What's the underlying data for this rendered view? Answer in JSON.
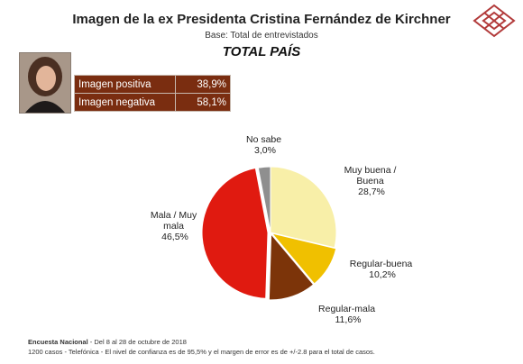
{
  "header": {
    "title": "Imagen de la ex Presidenta Cristina Fernández de Kirchner",
    "base": "Base: Total de entrevistados",
    "heading": "TOTAL PAÍS"
  },
  "summary": {
    "rows": [
      {
        "label": "Imagen positiva",
        "value": "38,9%"
      },
      {
        "label": "Imagen negativa",
        "value": "58,1%"
      }
    ]
  },
  "chart_data": {
    "type": "pie",
    "slices": [
      {
        "label": "Muy buena / Buena",
        "value": 28.7,
        "value_text": "28,7%",
        "color": "#f8efa8"
      },
      {
        "label": "Regular-buena",
        "value": 10.2,
        "value_text": "10,2%",
        "color": "#f0c000"
      },
      {
        "label": "Regular-mala",
        "value": 11.6,
        "value_text": "11,6%",
        "color": "#7c3409"
      },
      {
        "label": "Mala / Muy mala",
        "value": 46.5,
        "value_text": "46,5%",
        "color": "#e01a10"
      },
      {
        "label": "No sabe",
        "value": 3.0,
        "value_text": "3,0%",
        "color": "#8f8f8f"
      }
    ]
  },
  "footer": {
    "survey_name": "Encuesta Nacional",
    "survey_dates": " - Del 8 al 28 de octubre de 2018",
    "details": "1200 casos - Telefónica  -  El nivel de confianza es de 95,5% y el margen de error es de +/-2.8 para el total de casos."
  }
}
